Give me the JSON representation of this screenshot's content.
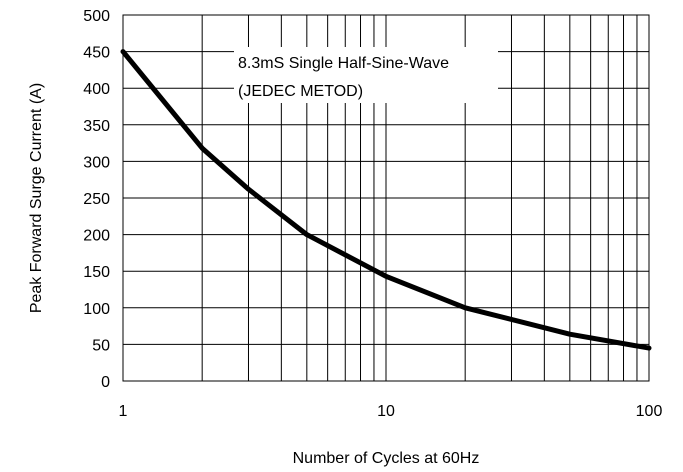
{
  "chart_data": {
    "type": "line",
    "title": "",
    "xlabel": "Number of Cycles at 60Hz",
    "ylabel": "Peak Forward Surge Current (A)",
    "x_scale": "log",
    "xlim": [
      1,
      100
    ],
    "ylim": [
      0,
      500
    ],
    "x_ticks": [
      1,
      10,
      100
    ],
    "y_ticks": [
      0,
      50,
      100,
      150,
      200,
      250,
      300,
      350,
      400,
      450,
      500
    ],
    "grid": true,
    "legend": "none",
    "series": [
      {
        "color": "#000000",
        "x": [
          1,
          2,
          3,
          5,
          10,
          20,
          50,
          100
        ],
        "y": [
          450,
          318,
          262,
          200,
          143,
          100,
          64,
          45
        ]
      }
    ],
    "annotations": [
      "8.3mS Single Half-Sine-Wave",
      "(JEDEC METOD)"
    ]
  }
}
